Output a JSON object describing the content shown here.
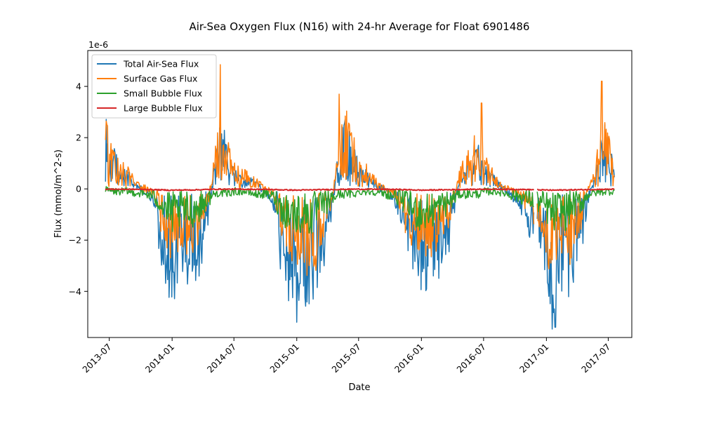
{
  "chart_data": {
    "type": "line",
    "title": "Air-Sea Oxygen Flux (N16) with 24-hr Average for Float 6901486",
    "xlabel": "Date",
    "ylabel": "Flux (mmol/m^2-s)",
    "y_offset_text": "1e-6",
    "x_scale": "date",
    "xlim": [
      "2013-04-29",
      "2017-09-08"
    ],
    "ylim": [
      -5.8,
      5.4
    ],
    "x_ticks": [
      "2013-07",
      "2014-01",
      "2014-07",
      "2015-01",
      "2015-07",
      "2016-01",
      "2016-07",
      "2017-01",
      "2017-07"
    ],
    "y_ticks": [
      -4,
      -2,
      0,
      2,
      4
    ],
    "y_tick_labels": [
      "−4",
      "−2",
      "0",
      "2",
      "4"
    ],
    "grid": false,
    "legend_position": "top-left",
    "series": [
      {
        "name": "Total Air-Sea Flux",
        "color": "#1f77b4",
        "points": [
          [
            "2013-06-20",
            1.7
          ],
          [
            "2013-07-01",
            0.6
          ],
          [
            "2013-07-15",
            0.9
          ],
          [
            "2013-08-01",
            0.5
          ],
          [
            "2013-08-20",
            0.4
          ],
          [
            "2013-09-15",
            0.1
          ],
          [
            "2013-10-15",
            -0.1
          ],
          [
            "2013-11-10",
            -0.4
          ],
          [
            "2013-11-25",
            -1.2
          ],
          [
            "2013-12-10",
            -1.7
          ],
          [
            "2013-12-25",
            -2.3
          ],
          [
            "2014-01-10",
            -2.6
          ],
          [
            "2014-01-25",
            -1.8
          ],
          [
            "2014-02-10",
            -2.2
          ],
          [
            "2014-03-01",
            -1.9
          ],
          [
            "2014-03-20",
            -1.6
          ],
          [
            "2014-04-15",
            -0.8
          ],
          [
            "2014-05-05",
            0.5
          ],
          [
            "2014-05-20",
            1.4
          ],
          [
            "2014-06-10",
            0.9
          ],
          [
            "2014-07-01",
            0.4
          ],
          [
            "2014-08-01",
            0.3
          ],
          [
            "2014-09-01",
            0.2
          ],
          [
            "2014-10-01",
            -0.1
          ],
          [
            "2014-10-25",
            -0.4
          ],
          [
            "2014-11-15",
            -1.5
          ],
          [
            "2014-12-10",
            -2.4
          ],
          [
            "2015-01-01",
            -2.5
          ],
          [
            "2015-01-20",
            -2.3
          ],
          [
            "2015-02-10",
            -2.7
          ],
          [
            "2015-03-01",
            -2.2
          ],
          [
            "2015-03-20",
            -1.5
          ],
          [
            "2015-04-15",
            -0.6
          ],
          [
            "2015-05-01",
            0.8
          ],
          [
            "2015-05-20",
            1.5
          ],
          [
            "2015-06-15",
            1.0
          ],
          [
            "2015-07-10",
            0.5
          ],
          [
            "2015-08-15",
            0.2
          ],
          [
            "2015-09-20",
            -0.1
          ],
          [
            "2015-10-20",
            -0.4
          ],
          [
            "2015-11-15",
            -1.2
          ],
          [
            "2015-12-10",
            -1.9
          ],
          [
            "2016-01-01",
            -2.1
          ],
          [
            "2016-01-25",
            -2.3
          ],
          [
            "2016-02-15",
            -1.7
          ],
          [
            "2016-03-10",
            -1.5
          ],
          [
            "2016-04-01",
            -0.9
          ],
          [
            "2016-04-20",
            0.2
          ],
          [
            "2016-05-15",
            0.6
          ],
          [
            "2016-06-15",
            0.9
          ],
          [
            "2016-07-05",
            0.5
          ],
          [
            "2016-08-10",
            0.2
          ],
          [
            "2016-09-10",
            -0.1
          ],
          [
            "2016-10-15",
            -0.4
          ],
          [
            "2016-11-15",
            -0.9
          ],
          [
            "2016-12-10",
            -1.3
          ],
          [
            "2017-01-01",
            -1.8
          ],
          [
            "2017-01-20",
            -2.9
          ],
          [
            "2017-02-05",
            -1.9
          ],
          [
            "2017-02-25",
            -2.4
          ],
          [
            "2017-03-20",
            -1.7
          ],
          [
            "2017-04-15",
            -1.3
          ],
          [
            "2017-05-05",
            -0.2
          ],
          [
            "2017-05-25",
            0.3
          ],
          [
            "2017-06-20",
            1.4
          ],
          [
            "2017-07-08",
            0.8
          ],
          [
            "2017-07-20",
            0.5
          ]
        ]
      },
      {
        "name": "Surface Gas Flux",
        "color": "#ff7f0e",
        "points": [
          [
            "2013-06-20",
            1.8
          ],
          [
            "2013-07-01",
            0.7
          ],
          [
            "2013-07-15",
            1.0
          ],
          [
            "2013-08-01",
            0.6
          ],
          [
            "2013-08-20",
            0.5
          ],
          [
            "2013-09-15",
            0.2
          ],
          [
            "2013-10-15",
            0.0
          ],
          [
            "2013-11-10",
            -0.2
          ],
          [
            "2013-11-25",
            -0.8
          ],
          [
            "2013-12-10",
            -1.1
          ],
          [
            "2013-12-25",
            -1.4
          ],
          [
            "2014-01-10",
            -1.6
          ],
          [
            "2014-01-25",
            -1.2
          ],
          [
            "2014-02-10",
            -1.4
          ],
          [
            "2014-03-01",
            -1.2
          ],
          [
            "2014-03-20",
            -1.0
          ],
          [
            "2014-04-15",
            -0.4
          ],
          [
            "2014-05-05",
            0.7
          ],
          [
            "2014-05-20",
            1.6
          ],
          [
            "2014-06-10",
            1.1
          ],
          [
            "2014-07-01",
            0.5
          ],
          [
            "2014-08-01",
            0.4
          ],
          [
            "2014-09-01",
            0.3
          ],
          [
            "2014-10-01",
            0.0
          ],
          [
            "2014-10-25",
            -0.2
          ],
          [
            "2014-11-15",
            -0.9
          ],
          [
            "2014-12-10",
            -1.5
          ],
          [
            "2015-01-01",
            -1.6
          ],
          [
            "2015-01-20",
            -1.5
          ],
          [
            "2015-02-10",
            -1.8
          ],
          [
            "2015-03-01",
            -1.5
          ],
          [
            "2015-03-20",
            -1.0
          ],
          [
            "2015-04-15",
            -0.3
          ],
          [
            "2015-05-01",
            1.0
          ],
          [
            "2015-05-20",
            1.7
          ],
          [
            "2015-06-15",
            1.2
          ],
          [
            "2015-07-10",
            0.6
          ],
          [
            "2015-08-15",
            0.3
          ],
          [
            "2015-09-20",
            0.0
          ],
          [
            "2015-10-20",
            -0.2
          ],
          [
            "2015-11-15",
            -0.8
          ],
          [
            "2015-12-10",
            -1.2
          ],
          [
            "2016-01-01",
            -1.3
          ],
          [
            "2016-01-25",
            -1.5
          ],
          [
            "2016-02-15",
            -1.1
          ],
          [
            "2016-03-10",
            -1.0
          ],
          [
            "2016-04-01",
            -0.5
          ],
          [
            "2016-04-20",
            0.4
          ],
          [
            "2016-05-15",
            0.8
          ],
          [
            "2016-06-15",
            1.1
          ],
          [
            "2016-07-05",
            0.6
          ],
          [
            "2016-08-10",
            0.3
          ],
          [
            "2016-09-10",
            0.0
          ],
          [
            "2016-10-15",
            -0.2
          ],
          [
            "2016-11-15",
            -0.6
          ],
          [
            "2016-12-10",
            -0.9
          ],
          [
            "2017-01-01",
            -1.2
          ],
          [
            "2017-01-20",
            -1.9
          ],
          [
            "2017-02-05",
            -1.3
          ],
          [
            "2017-02-25",
            -1.6
          ],
          [
            "2017-03-20",
            -1.2
          ],
          [
            "2017-04-15",
            -0.9
          ],
          [
            "2017-05-05",
            0.0
          ],
          [
            "2017-05-25",
            0.5
          ],
          [
            "2017-06-20",
            1.6
          ],
          [
            "2017-07-08",
            0.9
          ],
          [
            "2017-07-20",
            0.5
          ]
        ]
      },
      {
        "name": "Small Bubble Flux",
        "color": "#2ca02c",
        "points": [
          [
            "2013-06-20",
            -0.05
          ],
          [
            "2013-07-15",
            -0.1
          ],
          [
            "2013-08-20",
            -0.1
          ],
          [
            "2013-09-15",
            -0.15
          ],
          [
            "2013-10-15",
            -0.2
          ],
          [
            "2013-11-10",
            -0.3
          ],
          [
            "2013-11-25",
            -0.5
          ],
          [
            "2013-12-10",
            -0.7
          ],
          [
            "2013-12-25",
            -0.9
          ],
          [
            "2014-01-10",
            -1.0
          ],
          [
            "2014-01-25",
            -0.8
          ],
          [
            "2014-02-10",
            -0.9
          ],
          [
            "2014-03-01",
            -0.8
          ],
          [
            "2014-03-20",
            -0.7
          ],
          [
            "2014-04-15",
            -0.4
          ],
          [
            "2014-05-05",
            -0.2
          ],
          [
            "2014-05-20",
            -0.15
          ],
          [
            "2014-06-10",
            -0.2
          ],
          [
            "2014-07-01",
            -0.1
          ],
          [
            "2014-08-01",
            -0.1
          ],
          [
            "2014-09-01",
            -0.2
          ],
          [
            "2014-10-01",
            -0.2
          ],
          [
            "2014-10-25",
            -0.3
          ],
          [
            "2014-11-15",
            -0.7
          ],
          [
            "2014-12-10",
            -0.9
          ],
          [
            "2015-01-01",
            -1.0
          ],
          [
            "2015-01-20",
            -0.9
          ],
          [
            "2015-02-10",
            -1.0
          ],
          [
            "2015-03-01",
            -0.8
          ],
          [
            "2015-03-20",
            -0.6
          ],
          [
            "2015-04-15",
            -0.4
          ],
          [
            "2015-05-01",
            -0.2
          ],
          [
            "2015-05-20",
            -0.2
          ],
          [
            "2015-06-15",
            -0.2
          ],
          [
            "2015-07-10",
            -0.1
          ],
          [
            "2015-08-15",
            -0.1
          ],
          [
            "2015-09-20",
            -0.2
          ],
          [
            "2015-10-20",
            -0.3
          ],
          [
            "2015-11-15",
            -0.5
          ],
          [
            "2015-12-10",
            -0.8
          ],
          [
            "2016-01-01",
            -0.9
          ],
          [
            "2016-01-25",
            -0.9
          ],
          [
            "2016-02-15",
            -0.7
          ],
          [
            "2016-03-10",
            -0.6
          ],
          [
            "2016-04-01",
            -0.4
          ],
          [
            "2016-04-20",
            -0.2
          ],
          [
            "2016-05-15",
            -0.2
          ],
          [
            "2016-06-15",
            -0.2
          ],
          [
            "2016-07-05",
            -0.1
          ],
          [
            "2016-08-10",
            -0.1
          ],
          [
            "2016-09-10",
            -0.2
          ],
          [
            "2016-10-15",
            -0.3
          ],
          [
            "2016-11-15",
            -0.4
          ],
          [
            "2016-12-10",
            -0.5
          ],
          [
            "2017-01-01",
            -0.7
          ],
          [
            "2017-01-20",
            -1.0
          ],
          [
            "2017-02-05",
            -0.7
          ],
          [
            "2017-02-25",
            -0.9
          ],
          [
            "2017-03-20",
            -0.6
          ],
          [
            "2017-04-15",
            -0.5
          ],
          [
            "2017-05-05",
            -0.2
          ],
          [
            "2017-05-25",
            -0.15
          ],
          [
            "2017-06-20",
            -0.1
          ],
          [
            "2017-07-08",
            -0.1
          ],
          [
            "2017-07-20",
            -0.05
          ]
        ]
      },
      {
        "name": "Large Bubble Flux",
        "color": "#d62728",
        "points": [
          [
            "2013-06-20",
            -0.01
          ],
          [
            "2013-10-15",
            -0.02
          ],
          [
            "2013-12-25",
            -0.05
          ],
          [
            "2014-03-01",
            -0.04
          ],
          [
            "2014-05-20",
            -0.01
          ],
          [
            "2014-10-01",
            -0.02
          ],
          [
            "2015-01-01",
            -0.05
          ],
          [
            "2015-03-20",
            -0.03
          ],
          [
            "2015-06-15",
            -0.01
          ],
          [
            "2015-10-20",
            -0.02
          ],
          [
            "2016-01-01",
            -0.05
          ],
          [
            "2016-04-01",
            -0.03
          ],
          [
            "2016-07-05",
            -0.01
          ],
          [
            "2016-10-15",
            -0.02
          ],
          [
            "2017-01-20",
            -0.05
          ],
          [
            "2017-04-15",
            -0.03
          ],
          [
            "2017-07-20",
            -0.01
          ]
        ]
      }
    ],
    "annotated_extremes": [
      {
        "series": "Surface Gas Flux",
        "date": "2014-05-22",
        "value": 4.85
      },
      {
        "series": "Surface Gas Flux",
        "date": "2015-05-05",
        "value": 3.7
      },
      {
        "series": "Surface Gas Flux",
        "date": "2016-06-25",
        "value": 3.35
      },
      {
        "series": "Surface Gas Flux",
        "date": "2017-06-12",
        "value": 4.2
      },
      {
        "series": "Total Air-Sea Flux",
        "date": "2017-01-27",
        "value": -5.4
      },
      {
        "series": "Total Air-Sea Flux",
        "date": "2015-01-10",
        "value": -3.7
      },
      {
        "series": "Total Air-Sea Flux",
        "date": "2014-01-05",
        "value": -3.25
      }
    ]
  }
}
